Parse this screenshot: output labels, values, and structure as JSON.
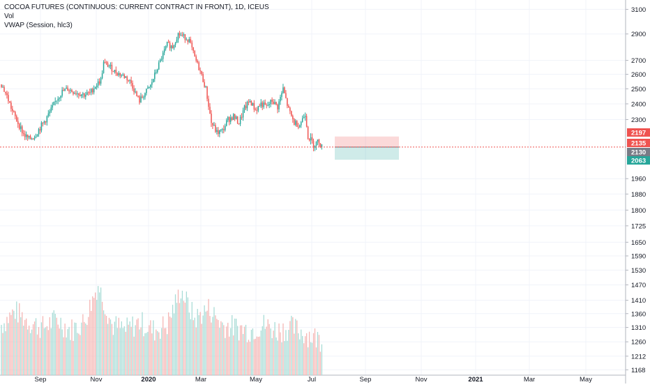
{
  "legend": {
    "title": "COCOA FUTURES (CONTINUOUS: CURRENT CONTRACT IN FRONT), 1D, ICEUS",
    "vol": "Vol",
    "vwap": "VWAP (Session, hlc3)"
  },
  "chart_data": {
    "type": "candlestick",
    "title": "COCOA FUTURES (CONTINUOUS: CURRENT CONTRACT IN FRONT), 1D, ICEUS",
    "x_tick_labels": [
      "Sep",
      "Nov",
      "2020",
      "Mar",
      "May",
      "Jul",
      "Sep",
      "Nov",
      "2021",
      "Mar",
      "May"
    ],
    "y_tick_labels": [
      1168,
      1212,
      1260,
      1310,
      1360,
      1410,
      1470,
      1530,
      1590,
      1650,
      1725,
      1800,
      1880,
      1960,
      2063,
      2130,
      2135,
      2197,
      2300,
      2400,
      2500,
      2600,
      2700,
      2900,
      3100
    ],
    "y_scale": "log",
    "ylim": [
      1160,
      3120
    ],
    "grid": true,
    "price_path": [
      {
        "t": 0,
        "v": 2530
      },
      {
        "t": 4,
        "v": 2450
      },
      {
        "t": 8,
        "v": 2350
      },
      {
        "t": 12,
        "v": 2280
      },
      {
        "t": 16,
        "v": 2210
      },
      {
        "t": 20,
        "v": 2180
      },
      {
        "t": 24,
        "v": 2200
      },
      {
        "t": 28,
        "v": 2250
      },
      {
        "t": 32,
        "v": 2300
      },
      {
        "t": 36,
        "v": 2360
      },
      {
        "t": 40,
        "v": 2430
      },
      {
        "t": 44,
        "v": 2480
      },
      {
        "t": 48,
        "v": 2500
      },
      {
        "t": 52,
        "v": 2480
      },
      {
        "t": 56,
        "v": 2470
      },
      {
        "t": 60,
        "v": 2460
      },
      {
        "t": 64,
        "v": 2470
      },
      {
        "t": 68,
        "v": 2520
      },
      {
        "t": 72,
        "v": 2560
      },
      {
        "t": 74,
        "v": 2680
      },
      {
        "t": 78,
        "v": 2660
      },
      {
        "t": 82,
        "v": 2620
      },
      {
        "t": 86,
        "v": 2600
      },
      {
        "t": 90,
        "v": 2580
      },
      {
        "t": 94,
        "v": 2540
      },
      {
        "t": 98,
        "v": 2450
      },
      {
        "t": 100,
        "v": 2420
      },
      {
        "t": 104,
        "v": 2470
      },
      {
        "t": 108,
        "v": 2520
      },
      {
        "t": 112,
        "v": 2620
      },
      {
        "t": 116,
        "v": 2720
      },
      {
        "t": 120,
        "v": 2820
      },
      {
        "t": 124,
        "v": 2800
      },
      {
        "t": 128,
        "v": 2900
      },
      {
        "t": 132,
        "v": 2880
      },
      {
        "t": 136,
        "v": 2850
      },
      {
        "t": 140,
        "v": 2720
      },
      {
        "t": 144,
        "v": 2620
      },
      {
        "t": 148,
        "v": 2500
      },
      {
        "t": 152,
        "v": 2280
      },
      {
        "t": 156,
        "v": 2220
      },
      {
        "t": 160,
        "v": 2230
      },
      {
        "t": 164,
        "v": 2300
      },
      {
        "t": 168,
        "v": 2320
      },
      {
        "t": 172,
        "v": 2280
      },
      {
        "t": 176,
        "v": 2370
      },
      {
        "t": 180,
        "v": 2420
      },
      {
        "t": 184,
        "v": 2360
      },
      {
        "t": 188,
        "v": 2400
      },
      {
        "t": 192,
        "v": 2380
      },
      {
        "t": 196,
        "v": 2420
      },
      {
        "t": 200,
        "v": 2380
      },
      {
        "t": 204,
        "v": 2500
      },
      {
        "t": 208,
        "v": 2360
      },
      {
        "t": 212,
        "v": 2280
      },
      {
        "t": 216,
        "v": 2270
      },
      {
        "t": 220,
        "v": 2340
      },
      {
        "t": 222,
        "v": 2200
      },
      {
        "t": 226,
        "v": 2150
      },
      {
        "t": 230,
        "v": 2170
      },
      {
        "t": 232,
        "v": 2135
      }
    ],
    "volume_series": [
      {
        "t": 0,
        "v": 1320
      },
      {
        "t": 10,
        "v": 1370
      },
      {
        "t": 20,
        "v": 1330
      },
      {
        "t": 30,
        "v": 1310
      },
      {
        "t": 40,
        "v": 1340
      },
      {
        "t": 50,
        "v": 1300
      },
      {
        "t": 60,
        "v": 1330
      },
      {
        "t": 70,
        "v": 1470
      },
      {
        "t": 80,
        "v": 1320
      },
      {
        "t": 90,
        "v": 1300
      },
      {
        "t": 100,
        "v": 1330
      },
      {
        "t": 110,
        "v": 1300
      },
      {
        "t": 120,
        "v": 1320
      },
      {
        "t": 130,
        "v": 1450
      },
      {
        "t": 140,
        "v": 1340
      },
      {
        "t": 150,
        "v": 1380
      },
      {
        "t": 160,
        "v": 1320
      },
      {
        "t": 170,
        "v": 1310
      },
      {
        "t": 180,
        "v": 1300
      },
      {
        "t": 190,
        "v": 1320
      },
      {
        "t": 200,
        "v": 1300
      },
      {
        "t": 210,
        "v": 1310
      },
      {
        "t": 220,
        "v": 1290
      },
      {
        "t": 230,
        "v": 1270
      }
    ],
    "last_price": 2135,
    "price_labels": [
      {
        "value": "2197",
        "color": "#ef5350"
      },
      {
        "value": "2135",
        "color": "#ef5350"
      },
      {
        "value": "2130",
        "color": "#787b86"
      },
      {
        "value": "2063",
        "color": "#26a69a"
      }
    ],
    "position_tool": {
      "target": 2197,
      "entry": 2135,
      "stop": 2063
    },
    "colors": {
      "up": "#26a69a",
      "down": "#ef5350",
      "vol_up": "#a8dcd6",
      "vol_down": "#f5b6b4",
      "grid": "#f0f3fa"
    }
  }
}
